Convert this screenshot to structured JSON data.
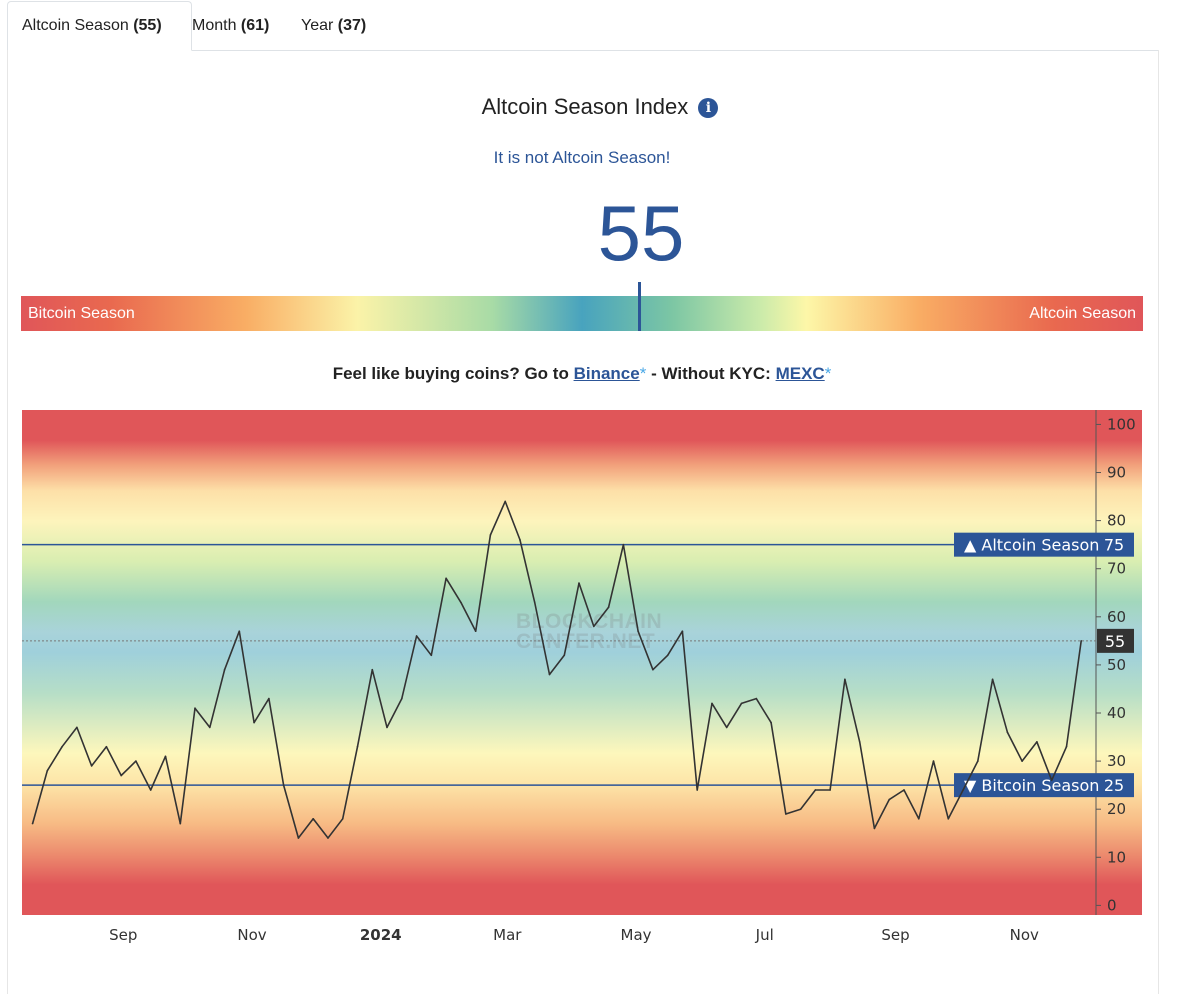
{
  "tabs": [
    {
      "label": "Altcoin Season",
      "value": "(55)"
    },
    {
      "label": "Month",
      "value": "(61)"
    },
    {
      "label": "Year",
      "value": "(37)"
    }
  ],
  "header": {
    "title": "Altcoin Season Index",
    "info_icon": "i",
    "status": "It is not Altcoin Season!",
    "value": "55"
  },
  "gauge": {
    "left_label": "Bitcoin Season",
    "right_label": "Altcoin Season",
    "value": 55
  },
  "promo": {
    "prefix": "Feel like buying coins? Go to",
    "link1": "Binance",
    "star": "*",
    "middle": "- Without KYC:",
    "link2": "MEXC"
  },
  "watermark": "BLOCKCHAIN CENTER.NET",
  "chart_data": {
    "type": "line",
    "x_ticks": [
      "Sep",
      "Nov",
      "2024",
      "Mar",
      "May",
      "Jul",
      "Sep",
      "Nov"
    ],
    "y_ticks": [
      0,
      10,
      20,
      30,
      40,
      50,
      60,
      70,
      80,
      90,
      100
    ],
    "ylim": [
      -2,
      103
    ],
    "grid": false,
    "current_value": 55,
    "thresholds": [
      {
        "label": "▲ Altcoin Season",
        "value": 75
      },
      {
        "label": "▼ Bitcoin Season",
        "value": 25
      }
    ],
    "x": [
      "2023-07-20",
      "2023-07-27",
      "2023-08-03",
      "2023-08-10",
      "2023-08-17",
      "2023-08-24",
      "2023-08-31",
      "2023-09-07",
      "2023-09-14",
      "2023-09-21",
      "2023-09-28",
      "2023-10-05",
      "2023-10-12",
      "2023-10-19",
      "2023-10-26",
      "2023-11-02",
      "2023-11-09",
      "2023-11-16",
      "2023-11-23",
      "2023-11-30",
      "2023-12-07",
      "2023-12-14",
      "2023-12-21",
      "2023-12-28",
      "2024-01-04",
      "2024-01-11",
      "2024-01-18",
      "2024-01-25",
      "2024-02-01",
      "2024-02-08",
      "2024-02-15",
      "2024-02-22",
      "2024-02-29",
      "2024-03-07",
      "2024-03-14",
      "2024-03-21",
      "2024-03-28",
      "2024-04-04",
      "2024-04-11",
      "2024-04-18",
      "2024-04-25",
      "2024-05-02",
      "2024-05-09",
      "2024-05-16",
      "2024-05-23",
      "2024-05-30",
      "2024-06-06",
      "2024-06-13",
      "2024-06-20",
      "2024-06-27",
      "2024-07-04",
      "2024-07-11",
      "2024-07-18",
      "2024-07-25",
      "2024-08-01",
      "2024-08-08",
      "2024-08-15",
      "2024-08-22",
      "2024-08-29",
      "2024-09-05",
      "2024-09-12",
      "2024-09-19",
      "2024-09-26",
      "2024-10-03",
      "2024-10-10",
      "2024-10-17",
      "2024-10-24",
      "2024-10-31",
      "2024-11-07",
      "2024-11-14",
      "2024-11-21",
      "2024-11-28"
    ],
    "values": [
      17,
      28,
      33,
      37,
      29,
      33,
      27,
      30,
      24,
      31,
      17,
      41,
      37,
      49,
      57,
      38,
      43,
      25,
      14,
      18,
      14,
      18,
      33,
      49,
      37,
      43,
      56,
      52,
      68,
      63,
      57,
      77,
      84,
      76,
      63,
      48,
      52,
      67,
      58,
      62,
      75,
      57,
      49,
      52,
      57,
      24,
      42,
      37,
      42,
      43,
      38,
      19,
      20,
      24,
      24,
      47,
      34,
      16,
      22,
      24,
      18,
      30,
      18,
      24,
      30,
      47,
      36,
      30,
      34,
      26,
      33,
      55
    ],
    "series": [
      {
        "name": "Altcoin Season Index",
        "color": "#333333"
      }
    ]
  },
  "colors": {
    "accent": "#2c5597",
    "threshold_line": "#2c5597",
    "current_tag_bg": "#333333"
  }
}
